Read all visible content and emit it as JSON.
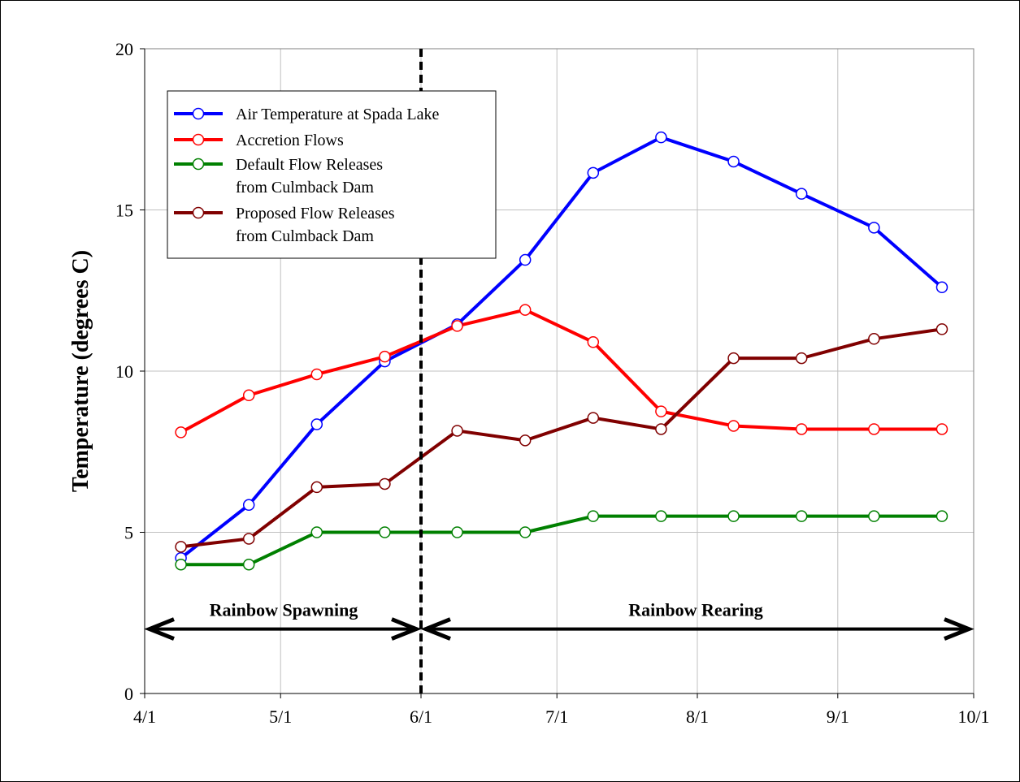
{
  "chart_data": {
    "type": "line",
    "title": "",
    "xlabel": "",
    "ylabel": "Temperature (degrees C)",
    "ylim": [
      0,
      20
    ],
    "yticks": [
      0,
      5,
      10,
      15,
      20
    ],
    "xlim": [
      "4/1",
      "10/1"
    ],
    "xticks": [
      "4/1",
      "5/1",
      "6/1",
      "7/1",
      "8/1",
      "9/1",
      "10/1"
    ],
    "grid": true,
    "legend_position": "top-left",
    "x": [
      "4/9",
      "4/24",
      "5/9",
      "5/24",
      "6/9",
      "6/24",
      "7/9",
      "7/24",
      "8/9",
      "8/24",
      "9/9",
      "9/24"
    ],
    "series": [
      {
        "name": "Air Temperature at Spada Lake",
        "color": "#0000ff",
        "values": [
          4.2,
          5.85,
          8.35,
          10.3,
          11.45,
          13.45,
          16.15,
          17.25,
          16.5,
          15.5,
          14.45,
          12.6
        ]
      },
      {
        "name": "Accretion Flows",
        "color": "#ff0000",
        "values": [
          8.1,
          9.25,
          9.9,
          10.45,
          11.4,
          11.9,
          10.9,
          8.75,
          8.3,
          8.2,
          8.2,
          8.2
        ]
      },
      {
        "name": "Default Flow Releases from Culmback Dam",
        "color": "#008000",
        "values": [
          4.0,
          4.0,
          5.0,
          5.0,
          5.0,
          5.0,
          5.5,
          5.5,
          5.5,
          5.5,
          5.5,
          5.5
        ]
      },
      {
        "name": "Proposed Flow Releases from Culmback Dam",
        "color": "#800000",
        "values": [
          4.55,
          4.8,
          6.4,
          6.5,
          8.15,
          7.85,
          8.55,
          8.2,
          10.4,
          10.4,
          11.0,
          11.3
        ]
      }
    ],
    "legend_lines": [
      [
        "Air Temperature at Spada Lake"
      ],
      [
        "Accretion Flows"
      ],
      [
        "Default Flow Releases",
        "from Culmback Dam"
      ],
      [
        "Proposed Flow Releases",
        "from Culmback Dam"
      ]
    ],
    "divider_x": "6/1",
    "annotations": [
      {
        "text": "Rainbow Spawning",
        "from": "4/1",
        "to": "6/1",
        "y": 2
      },
      {
        "text": "Rainbow Rearing",
        "from": "6/1",
        "to": "10/1",
        "y": 2
      }
    ]
  }
}
